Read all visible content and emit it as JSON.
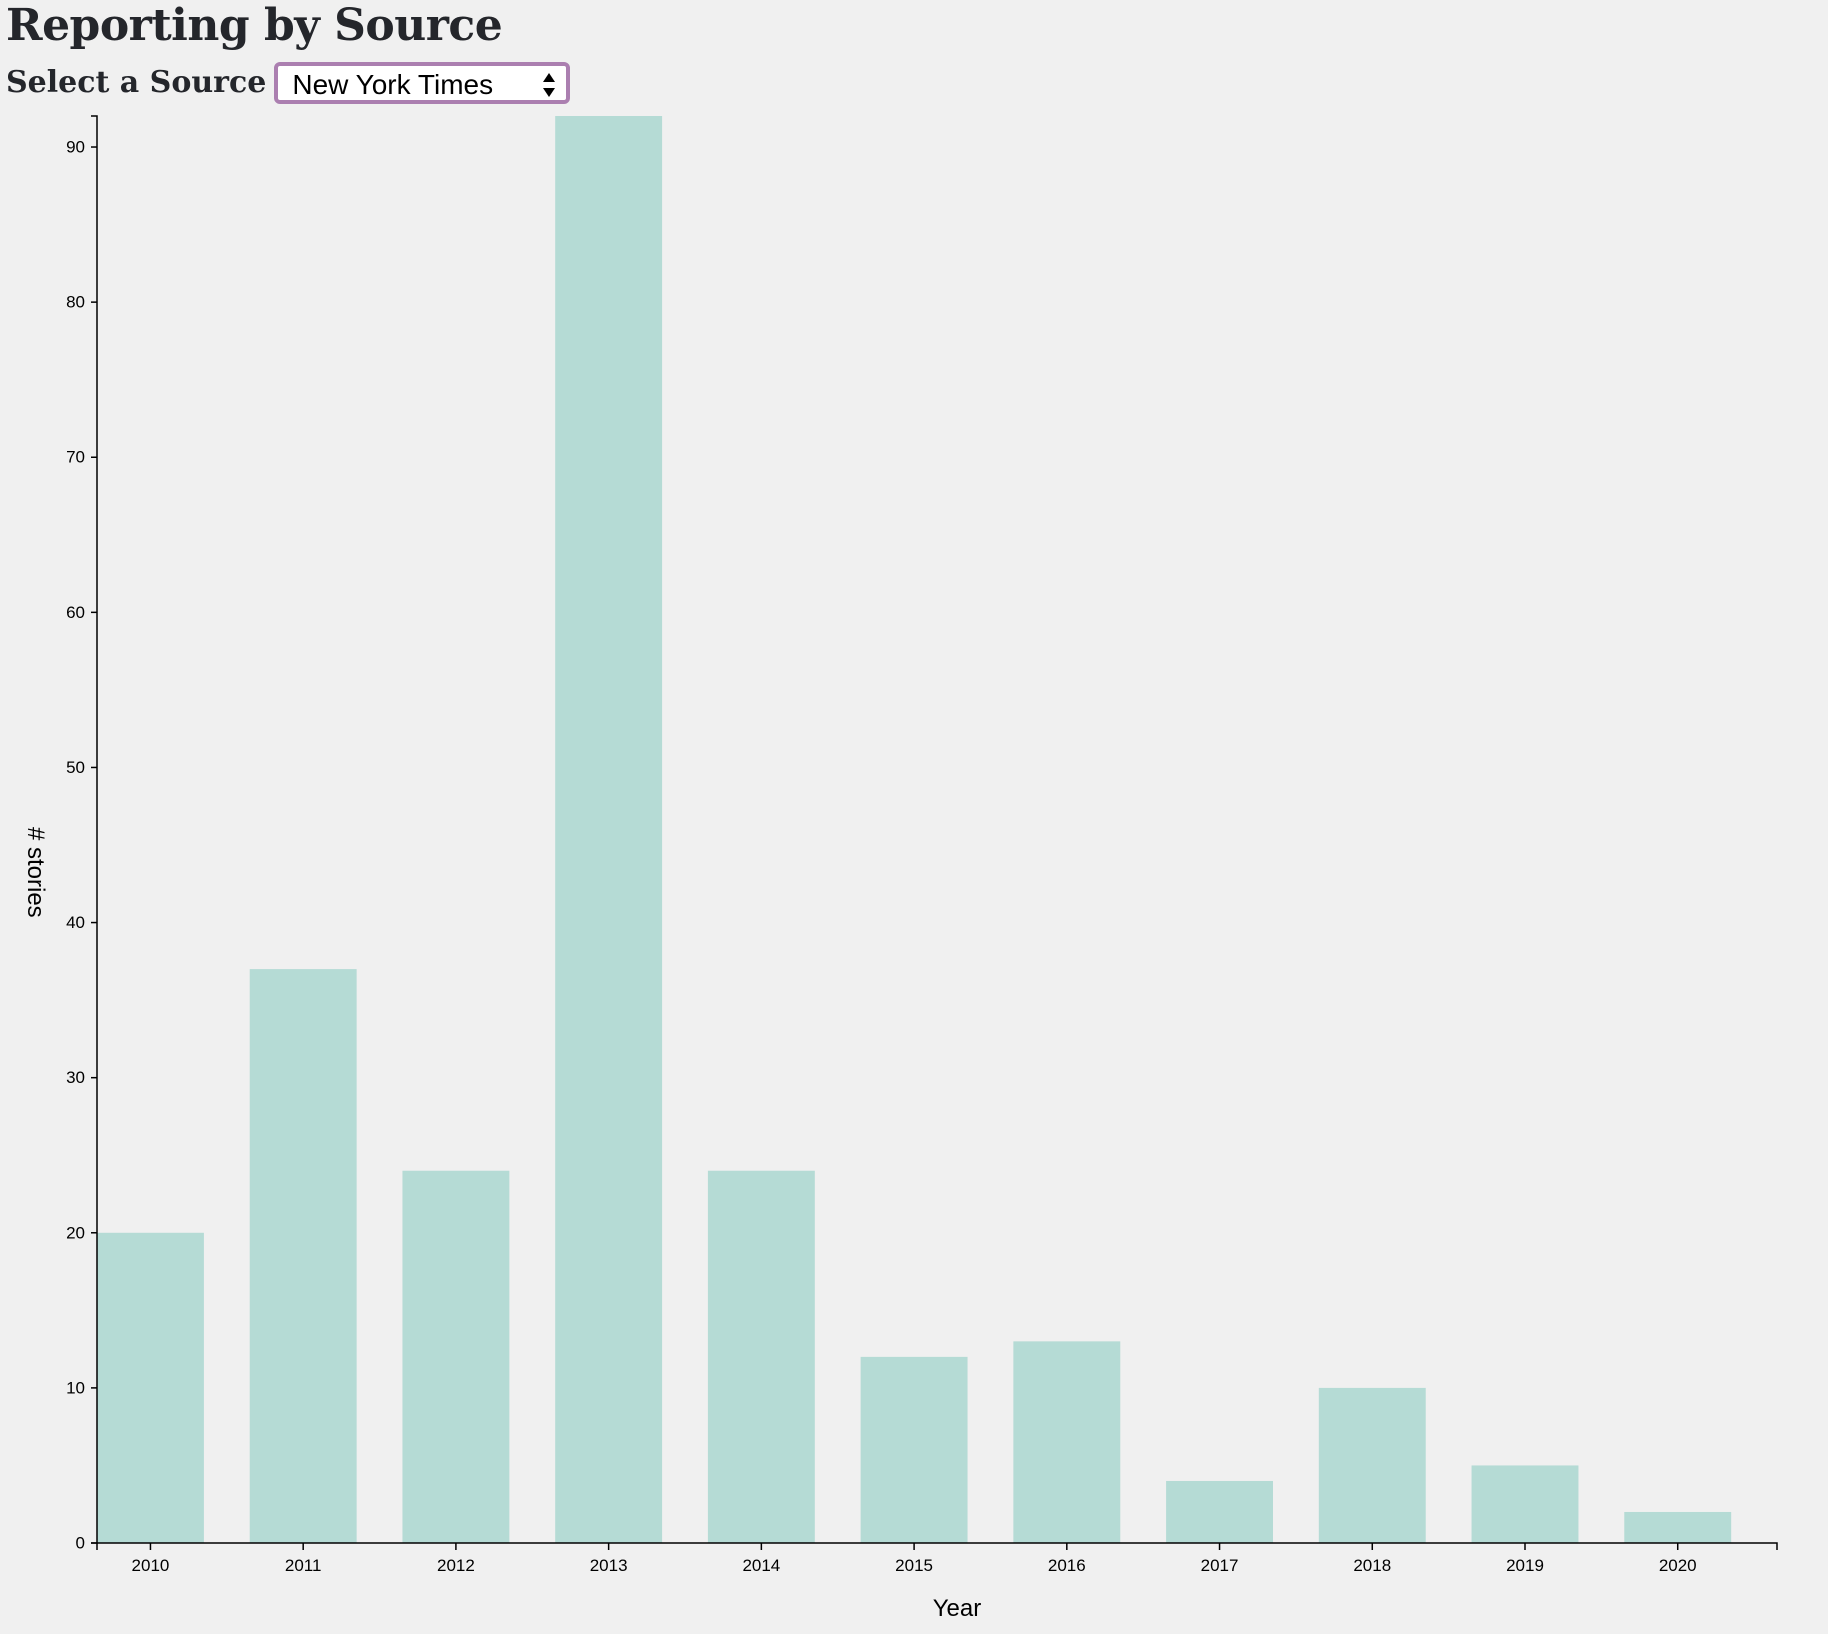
{
  "header": {
    "title": "Reporting by Source"
  },
  "source_select": {
    "label": "Select a Source",
    "selected": "New York Times",
    "border_color": "#ab7fb0"
  },
  "colors": {
    "bar": "#b5dbd5",
    "background": "#f0f0f0",
    "axis": "#000000"
  },
  "chart_data": {
    "type": "bar",
    "title": "",
    "xlabel": "Year",
    "ylabel": "# stories",
    "categories": [
      "2010",
      "2011",
      "2012",
      "2013",
      "2014",
      "2015",
      "2016",
      "2017",
      "2018",
      "2019",
      "2020"
    ],
    "values": [
      20,
      37,
      24,
      92,
      24,
      12,
      13,
      4,
      10,
      5,
      2
    ],
    "ylim": [
      0,
      92
    ],
    "yticks": [
      0,
      10,
      20,
      30,
      40,
      50,
      60,
      70,
      80,
      90
    ],
    "grid": false,
    "legend": "none"
  }
}
